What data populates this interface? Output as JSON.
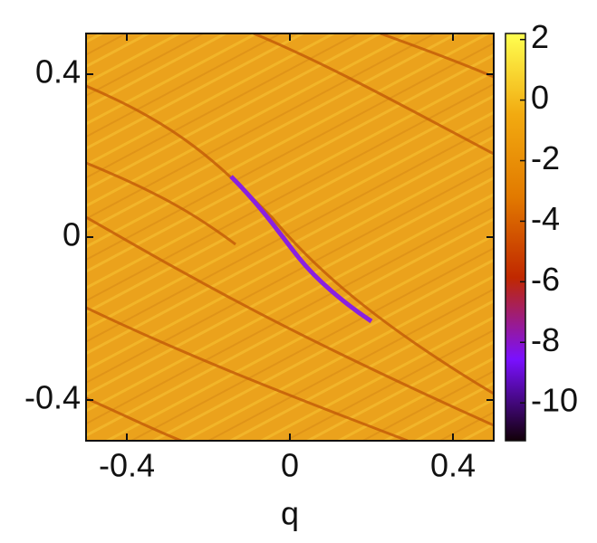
{
  "chart_data": {
    "type": "heatmap",
    "x_label": "q",
    "xlim": [
      -0.5,
      0.5
    ],
    "xticks": [
      -0.4,
      0,
      0.4
    ],
    "ylim": [
      -0.5,
      0.5
    ],
    "yticks": [
      -0.4,
      0,
      0.4
    ],
    "clim": [
      -11.25,
      2.2
    ],
    "cticks": [
      2,
      0,
      -2,
      -4,
      -6,
      -8,
      -10
    ],
    "colormap": [
      "#120008",
      "#7a10ff",
      "#c02800",
      "#e27a00",
      "#f2aa10",
      "#ffff50"
    ]
  }
}
